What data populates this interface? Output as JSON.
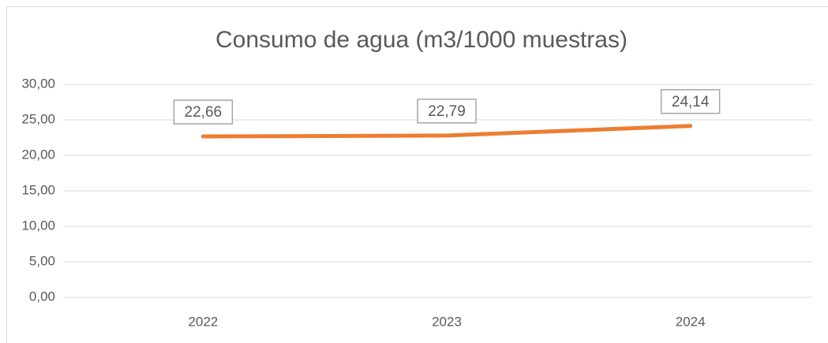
{
  "chart_data": {
    "type": "line",
    "title": "Consumo de agua (m3/1000 muestras)",
    "categories": [
      "2022",
      "2023",
      "2024"
    ],
    "series": [
      {
        "name": "Consumo de agua",
        "color": "#ed7d31",
        "values": [
          22.66,
          22.79,
          24.14
        ],
        "value_labels": [
          "22,66",
          "22,79",
          "24,14"
        ]
      }
    ],
    "ylim": [
      0,
      30
    ],
    "yticks": [
      {
        "value": 0,
        "label": "0,00"
      },
      {
        "value": 5,
        "label": "5,00"
      },
      {
        "value": 10,
        "label": "10,00"
      },
      {
        "value": 15,
        "label": "15,00"
      },
      {
        "value": 20,
        "label": "20,00"
      },
      {
        "value": 25,
        "label": "25,00"
      },
      {
        "value": 30,
        "label": "30,00"
      }
    ],
    "grid": true
  }
}
